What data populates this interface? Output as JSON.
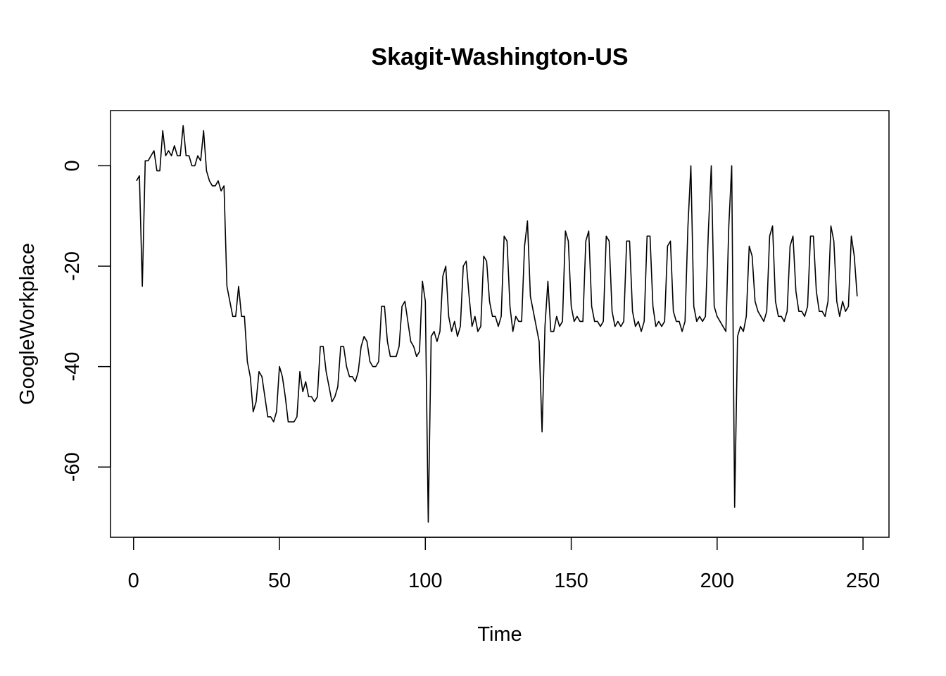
{
  "chart_data": {
    "type": "line",
    "title": "Skagit-Washington-US",
    "xlabel": "Time",
    "ylabel": "GoogleWorkplace",
    "xlim": [
      -7.9,
      258.9
    ],
    "ylim": [
      -74,
      11
    ],
    "xticks": [
      0,
      50,
      100,
      150,
      200,
      250
    ],
    "yticks": [
      0,
      -20,
      -40,
      -60
    ],
    "grid": false,
    "series": [
      {
        "values": [
          -3,
          -2,
          -24,
          1,
          1,
          2,
          3,
          -1,
          -1,
          7,
          2,
          3,
          2,
          4,
          2,
          2,
          8,
          2,
          2,
          0,
          0,
          2,
          1,
          7,
          -1,
          -3,
          -4,
          -4,
          -3,
          -5,
          -4,
          -24,
          -27,
          -30,
          -30,
          -24,
          -30,
          -30,
          -39,
          -42,
          -49,
          -47,
          -41,
          -42,
          -46,
          -50,
          -50,
          -51,
          -49,
          -40,
          -42,
          -46,
          -51,
          -51,
          -51,
          -50,
          -41,
          -45,
          -43,
          -46,
          -46,
          -47,
          -46,
          -36,
          -36,
          -41,
          -44,
          -47,
          -46,
          -44,
          -36,
          -36,
          -40,
          -42,
          -42,
          -43,
          -41,
          -36,
          -34,
          -35,
          -39,
          -40,
          -40,
          -39,
          -28,
          -28,
          -35,
          -38,
          -38,
          -38,
          -36,
          -28,
          -27,
          -31,
          -35,
          -36,
          -38,
          -37,
          -23,
          -27,
          -71,
          -34,
          -33,
          -35,
          -33,
          -22,
          -20,
          -30,
          -33,
          -31,
          -34,
          -32,
          -20,
          -19,
          -26,
          -32,
          -30,
          -33,
          -32,
          -18,
          -19,
          -27,
          -30,
          -30,
          -32,
          -30,
          -14,
          -15,
          -28,
          -33,
          -30,
          -31,
          -31,
          -16,
          -11,
          -26,
          -29,
          -32,
          -35,
          -53,
          -32,
          -23,
          -33,
          -33,
          -30,
          -32,
          -31,
          -13,
          -15,
          -28,
          -31,
          -30,
          -31,
          -31,
          -15,
          -13,
          -28,
          -31,
          -31,
          -32,
          -31,
          -14,
          -15,
          -29,
          -32,
          -31,
          -32,
          -31,
          -15,
          -15,
          -29,
          -32,
          -31,
          -33,
          -31,
          -14,
          -14,
          -28,
          -32,
          -31,
          -32,
          -31,
          -16,
          -15,
          -29,
          -31,
          -31,
          -33,
          -31,
          -12,
          0,
          -28,
          -31,
          -30,
          -31,
          -30,
          -13,
          0,
          -28,
          -30,
          -31,
          -32,
          -33,
          -12,
          0,
          -68,
          -34,
          -32,
          -33,
          -30,
          -16,
          -18,
          -27,
          -29,
          -30,
          -31,
          -29,
          -14,
          -12,
          -27,
          -30,
          -30,
          -31,
          -29,
          -16,
          -14,
          -25,
          -29,
          -29,
          -30,
          -28,
          -14,
          -14,
          -25,
          -29,
          -29,
          -30,
          -27,
          -12,
          -15,
          -27,
          -30,
          -27,
          -29,
          -28,
          -14,
          -18,
          -26
        ]
      }
    ]
  }
}
